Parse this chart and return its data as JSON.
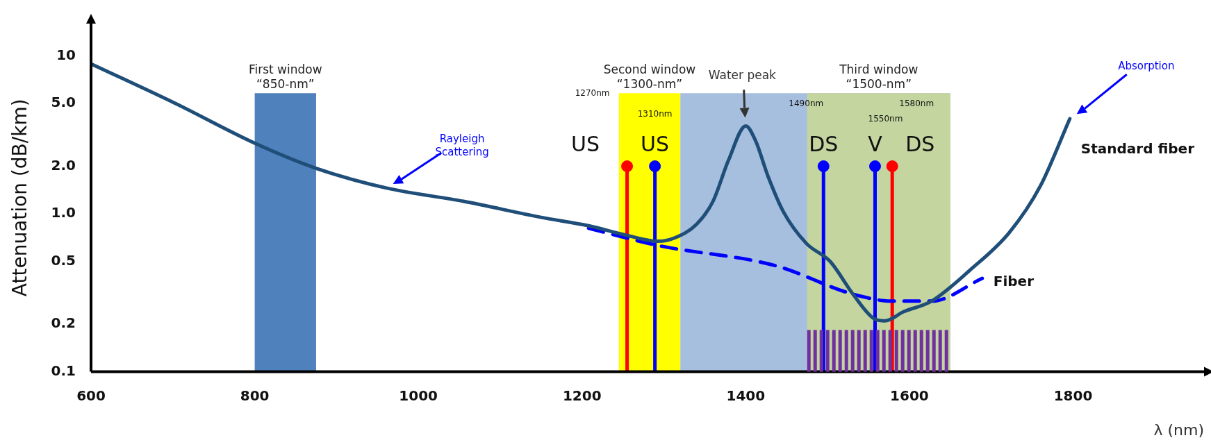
{
  "chart_data": {
    "type": "line",
    "xlabel": "λ (nm)",
    "ylabel": "Attenuation (dB/km)",
    "xlim": [
      600,
      1960
    ],
    "xticks": [
      600,
      800,
      1000,
      1200,
      1400,
      1600,
      1800
    ],
    "ylim": [
      0.1,
      16
    ],
    "yticks": [
      {
        "value": 0.1,
        "label": "0.1"
      },
      {
        "value": 0.2,
        "label": "0.2"
      },
      {
        "value": 0.5,
        "label": "0.5"
      },
      {
        "value": 1,
        "label": "1.0"
      },
      {
        "value": 2,
        "label": "2.0"
      },
      {
        "value": 5,
        "label": "5.0"
      },
      {
        "value": 10,
        "label": "10"
      }
    ],
    "log": "y",
    "grid": false,
    "legend": false,
    "series": [
      {
        "name": "Standard fiber",
        "color": "#1f4e79",
        "line_style": "solid",
        "x": [
          600,
          703,
          800,
          874,
          960,
          1055,
          1150,
          1208,
          1255,
          1293,
          1312,
          1340,
          1360,
          1379,
          1400,
          1412,
          1427,
          1446,
          1474,
          1503,
          1531,
          1555,
          1570,
          1593,
          1627,
          1674,
          1722,
          1760,
          1796
        ],
        "values": [
          8.9,
          5.0,
          2.8,
          1.95,
          1.46,
          1.2,
          0.95,
          0.84,
          0.73,
          0.67,
          0.7,
          0.86,
          1.2,
          2.19,
          3.6,
          2.9,
          1.74,
          1.03,
          0.65,
          0.5,
          0.31,
          0.22,
          0.21,
          0.24,
          0.28,
          0.44,
          0.76,
          1.5,
          4.0
        ]
      },
      {
        "name": "Fiber",
        "color": "#0000ff",
        "line_style": "dashed",
        "x": [
          1208,
          1293,
          1436,
          1531,
          1579,
          1627,
          1689
        ],
        "values": [
          0.81,
          0.63,
          0.47,
          0.31,
          0.28,
          0.28,
          0.39
        ]
      },
      {
        "type": "lollipop",
        "x": [
          1255,
          1289,
          1495,
          1558,
          1579
        ],
        "values": [
          2,
          2,
          2,
          2,
          2
        ],
        "colors": [
          "#ff0000",
          "#0000ff",
          "#0000ff",
          "#0000ff",
          "#ff0000"
        ],
        "value_labels": [
          "US",
          "US",
          "DS",
          "V",
          "DS"
        ]
      }
    ],
    "bands": [
      {
        "axis": "x",
        "from": 800,
        "to": 875,
        "color": "#4f81bd",
        "label": "First window\n“850-nm”"
      },
      {
        "axis": "x",
        "from": 1320,
        "to": 1650,
        "color": "#a7bfde"
      },
      {
        "axis": "x",
        "from": 1245,
        "to": 1320,
        "color": "#ffff00",
        "label": "Second window\n“1300-nm”"
      },
      {
        "axis": "x",
        "from": 1475,
        "to": 1650,
        "color": "#c4d59f",
        "label": "Third window\n“1500-nm”"
      }
    ],
    "annotations": [
      "Rayleigh\nScattering",
      "Absorption",
      "Water peak",
      "1270nm",
      "1310nm",
      "1490nm",
      "1580nm",
      "1550nm"
    ]
  }
}
